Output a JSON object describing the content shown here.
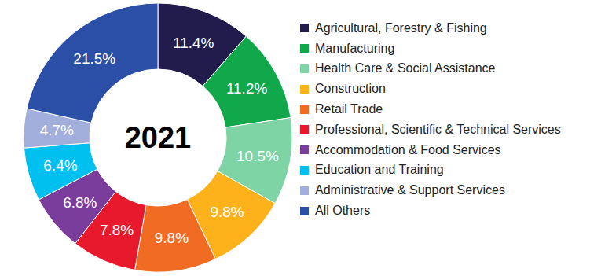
{
  "chart_data": {
    "type": "pie",
    "title": "2021",
    "categories": [
      "Agricultural, Forestry & Fishing",
      "Manufacturing",
      "Health Care & Social Assistance",
      "Construction",
      "Retail Trade",
      "Professional, Scientific & Technical Services",
      "Accommodation & Food Services",
      "Education and Training",
      "Administrative & Support Services",
      "All Others"
    ],
    "values": [
      11.4,
      11.2,
      10.5,
      9.8,
      9.8,
      7.8,
      6.8,
      6.4,
      4.7,
      21.5
    ],
    "value_labels": [
      "11.4%",
      "11.2%",
      "10.5%",
      "9.8%",
      "9.8%",
      "7.8%",
      "6.8%",
      "6.4%",
      "4.7%",
      "21.5%"
    ],
    "colors": [
      "#211c4b",
      "#10a84b",
      "#7fd4a6",
      "#fdb21c",
      "#f26b23",
      "#e8192c",
      "#7b3d9b",
      "#00c0f0",
      "#a2aedb",
      "#2b4ea6"
    ],
    "legend": "right",
    "data_labels": true
  }
}
